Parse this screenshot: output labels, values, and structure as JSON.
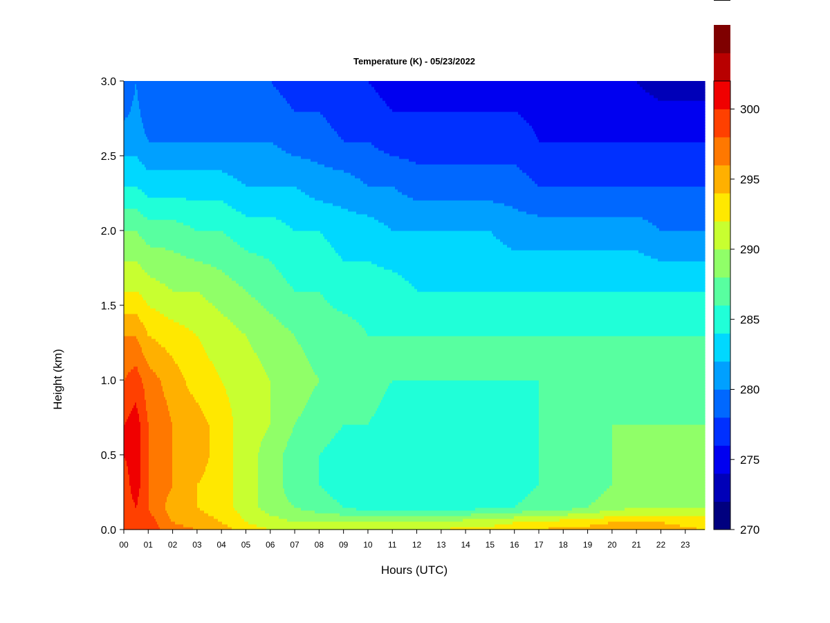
{
  "chart_data": {
    "type": "heatmap",
    "title": "Temperature (K) - 05/23/2022",
    "xlabel": "Hours (UTC)",
    "ylabel": "Height (km)",
    "x_ticks": [
      "00",
      "01",
      "02",
      "03",
      "04",
      "05",
      "06",
      "07",
      "08",
      "09",
      "10",
      "11",
      "12",
      "13",
      "14",
      "15",
      "16",
      "17",
      "18",
      "19",
      "20",
      "21",
      "22",
      "23"
    ],
    "xlim": [
      0,
      23.8
    ],
    "ylim": [
      0,
      3.0
    ],
    "y_ticks": [
      "0.0",
      "0.5",
      "1.0",
      "1.5",
      "2.0",
      "2.5",
      "3.0"
    ],
    "y_tick_values": [
      0,
      0.5,
      1.0,
      1.5,
      2.0,
      2.5,
      3.0
    ],
    "colorbar": {
      "min": 270,
      "max": 302,
      "step": 2,
      "tick_labels": [
        "270",
        "275",
        "280",
        "285",
        "290",
        "295",
        "300"
      ],
      "tick_values": [
        270,
        275,
        280,
        285,
        290,
        295,
        300
      ],
      "colors": [
        "#00007f",
        "#0000b8",
        "#0000f0",
        "#0030ff",
        "#0068ff",
        "#00a0ff",
        "#00d8ff",
        "#20ffd8",
        "#58ffa0",
        "#90ff68",
        "#c8ff30",
        "#ffe800",
        "#ffb000",
        "#ff7800",
        "#ff4000",
        "#f00000",
        "#b80000",
        "#7f0000"
      ]
    },
    "heights_km": [
      0.0,
      0.05,
      0.15,
      0.3,
      0.5,
      0.7,
      1.0,
      1.3,
      1.6,
      2.0,
      2.3,
      2.6,
      3.0
    ],
    "hours": [
      0,
      0.5,
      1,
      2,
      3,
      4,
      5,
      6,
      7,
      8,
      9,
      10,
      11,
      12,
      13,
      14,
      15,
      16,
      17,
      18,
      19,
      20,
      21,
      22,
      23.8
    ],
    "temperature_K": [
      [
        300,
        300,
        299,
        297,
        296,
        295,
        293,
        292,
        291,
        291,
        291,
        291,
        292,
        292,
        292,
        293,
        293,
        293,
        294,
        295,
        295,
        296,
        296,
        295,
        294
      ],
      [
        299,
        300,
        299,
        296,
        295,
        294,
        292,
        291,
        290,
        290,
        290,
        290,
        290,
        290,
        290,
        291,
        291,
        292,
        292,
        293,
        293,
        294,
        294,
        294,
        293
      ],
      [
        299,
        300,
        298,
        295,
        294,
        293,
        291,
        289,
        288,
        287,
        286,
        285,
        285,
        285,
        285,
        285,
        286,
        286,
        287,
        287,
        288,
        289,
        290,
        290,
        290
      ],
      [
        299,
        301,
        298,
        296,
        294,
        293,
        291,
        289,
        287,
        286,
        285,
        284,
        284,
        284,
        284,
        284,
        284,
        285,
        286,
        287,
        287,
        288,
        289,
        289,
        289
      ],
      [
        300,
        301,
        298,
        296,
        295,
        293,
        291,
        289,
        287,
        286,
        285,
        285,
        284,
        284,
        284,
        284,
        284,
        285,
        286,
        287,
        287,
        288,
        289,
        289,
        289
      ],
      [
        300,
        301,
        298,
        296,
        295,
        293,
        291,
        290,
        288,
        287,
        286,
        286,
        285,
        285,
        285,
        285,
        285,
        285,
        286,
        287,
        287,
        288,
        288,
        288,
        288
      ],
      [
        298,
        299,
        297,
        295,
        293,
        292,
        291,
        290,
        289,
        288,
        287,
        287,
        286,
        286,
        286,
        286,
        286,
        286,
        286,
        287,
        287,
        287,
        287,
        287,
        287
      ],
      [
        296,
        296,
        294,
        293,
        292,
        291,
        290,
        289,
        288,
        287,
        287,
        286,
        286,
        286,
        286,
        286,
        286,
        286,
        286,
        286,
        286,
        286,
        286,
        286,
        286
      ],
      [
        292,
        292,
        291,
        290,
        290,
        289,
        288,
        287,
        286,
        286,
        285,
        285,
        285,
        284,
        284,
        284,
        284,
        284,
        284,
        284,
        284,
        284,
        284,
        284,
        284
      ],
      [
        288,
        288,
        287,
        287,
        286,
        286,
        285,
        285,
        284,
        284,
        283,
        283,
        282,
        282,
        282,
        282,
        282,
        281,
        281,
        281,
        281,
        281,
        281,
        280,
        280
      ],
      [
        284,
        284,
        283,
        283,
        283,
        283,
        282,
        282,
        282,
        281,
        281,
        280,
        280,
        279,
        279,
        279,
        279,
        279,
        278,
        278,
        278,
        278,
        278,
        278,
        278
      ],
      [
        281,
        281,
        280,
        280,
        280,
        280,
        280,
        280,
        279,
        279,
        278,
        278,
        277,
        277,
        277,
        277,
        277,
        277,
        276,
        276,
        276,
        276,
        276,
        276,
        276
      ],
      [
        278,
        280,
        278,
        278,
        278,
        278,
        278,
        278,
        277,
        277,
        276,
        276,
        275,
        275,
        275,
        275,
        275,
        275,
        275,
        274,
        274,
        274,
        274,
        273,
        273
      ]
    ]
  }
}
